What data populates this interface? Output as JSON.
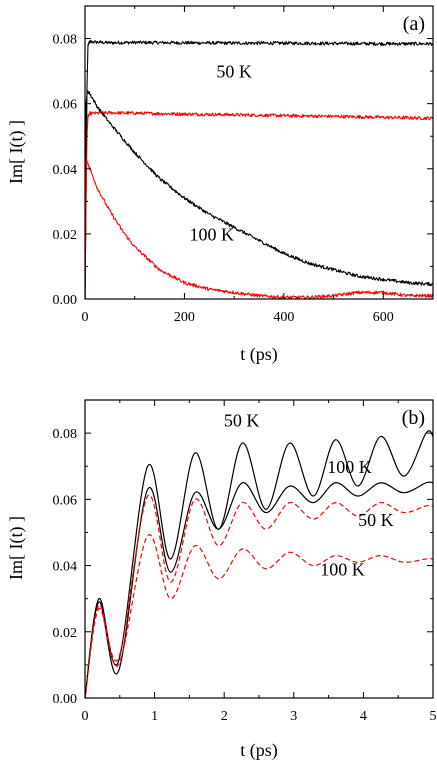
{
  "chart_data": [
    {
      "type": "line",
      "panel_label": "(a)",
      "xlabel": "t (ps)",
      "ylabel": "Im[ I(t) ]",
      "xlim": [
        0,
        700
      ],
      "ylim": [
        0,
        0.09
      ],
      "x_ticks": [
        0,
        200,
        400,
        600
      ],
      "x_tick_labels": [
        "0",
        "200",
        "400",
        "600"
      ],
      "y_ticks": [
        0,
        0.02,
        0.04,
        0.06,
        0.08
      ],
      "y_tick_labels": [
        "0.00",
        "0.02",
        "0.04",
        "0.06",
        "0.08"
      ],
      "series": [
        {
          "color": "#000000",
          "style": "solid",
          "noisy": true,
          "x": [
            0,
            2,
            4,
            6,
            10,
            50,
            100,
            200,
            300,
            400,
            500,
            600,
            700
          ],
          "y": [
            0.0,
            0.03,
            0.065,
            0.078,
            0.079,
            0.0787,
            0.0788,
            0.0787,
            0.0786,
            0.0786,
            0.0785,
            0.0784,
            0.0784
          ]
        },
        {
          "color": "#ff0000",
          "style": "solid",
          "noisy": true,
          "x": [
            0,
            2,
            4,
            6,
            10,
            50,
            100,
            200,
            300,
            400,
            500,
            600,
            700
          ],
          "y": [
            0.0,
            0.03,
            0.05,
            0.056,
            0.057,
            0.0572,
            0.0571,
            0.0568,
            0.0566,
            0.0563,
            0.0561,
            0.0558,
            0.0555
          ]
        },
        {
          "color": "#000000",
          "style": "solid",
          "noisy": true,
          "x": [
            0,
            2,
            5,
            10,
            25,
            50,
            100,
            150,
            200,
            250,
            300,
            350,
            400,
            450,
            500,
            550,
            600,
            650,
            700
          ],
          "y": [
            0.0,
            0.06,
            0.064,
            0.063,
            0.059,
            0.054,
            0.045,
            0.037,
            0.031,
            0.026,
            0.022,
            0.018,
            0.014,
            0.011,
            0.009,
            0.007,
            0.006,
            0.005,
            0.0045
          ]
        },
        {
          "color": "#ff0000",
          "style": "solid",
          "noisy": true,
          "x": [
            0,
            2,
            5,
            10,
            25,
            50,
            75,
            100,
            150,
            200,
            250,
            300,
            350,
            400,
            450,
            500,
            550,
            600,
            650,
            700
          ],
          "y": [
            0.0,
            0.043,
            0.042,
            0.04,
            0.034,
            0.027,
            0.021,
            0.016,
            0.009,
            0.005,
            0.003,
            0.002,
            0.001,
            0.0005,
            0.0005,
            0.001,
            0.002,
            0.002,
            0.001,
            0.001
          ]
        }
      ],
      "annotations": [
        {
          "text": "50 K",
          "x": 300,
          "y": 0.068
        },
        {
          "text": "100 K",
          "x": 255,
          "y": 0.018
        }
      ]
    },
    {
      "type": "line",
      "panel_label": "(b)",
      "xlabel": "t (ps)",
      "ylabel": "Im[ I(t) ]",
      "xlim": [
        0,
        5
      ],
      "ylim": [
        0,
        0.09
      ],
      "x_ticks": [
        0,
        1,
        2,
        3,
        4,
        5
      ],
      "x_tick_labels": [
        "0",
        "1",
        "2",
        "3",
        "4",
        "5"
      ],
      "y_ticks": [
        0,
        0.02,
        0.04,
        0.06,
        0.08
      ],
      "y_tick_labels": [
        "0.00",
        "0.02",
        "0.04",
        "0.06",
        "0.08"
      ],
      "series": [
        {
          "color": "#000000",
          "style": "solid",
          "x": [
            0,
            0.2,
            0.48,
            0.9,
            1.23,
            1.58,
            1.92,
            2.26,
            2.6,
            2.94,
            3.28,
            3.6,
            3.92,
            4.25,
            4.58,
            4.9,
            5.0
          ],
          "y": [
            0.0,
            0.03,
            0.011,
            0.07,
            0.042,
            0.074,
            0.051,
            0.077,
            0.057,
            0.077,
            0.061,
            0.078,
            0.064,
            0.079,
            0.067,
            0.08,
            0.079
          ]
        },
        {
          "color": "#000000",
          "style": "solid",
          "x": [
            0,
            0.2,
            0.48,
            0.9,
            1.23,
            1.58,
            1.92,
            2.26,
            2.6,
            2.94,
            3.28,
            3.6,
            3.92,
            4.25,
            4.58,
            4.9,
            5.0
          ],
          "y": [
            0.0,
            0.029,
            0.008,
            0.063,
            0.038,
            0.062,
            0.051,
            0.065,
            0.056,
            0.064,
            0.059,
            0.065,
            0.061,
            0.065,
            0.062,
            0.065,
            0.065
          ]
        },
        {
          "color": "#ff0000",
          "style": "dashed",
          "x": [
            0,
            0.2,
            0.48,
            0.9,
            1.23,
            1.58,
            1.92,
            2.26,
            2.6,
            2.94,
            3.28,
            3.6,
            3.92,
            4.25,
            4.58,
            4.9,
            5.0
          ],
          "y": [
            0.0,
            0.028,
            0.012,
            0.061,
            0.035,
            0.06,
            0.046,
            0.059,
            0.051,
            0.059,
            0.054,
            0.059,
            0.055,
            0.059,
            0.056,
            0.058,
            0.058
          ]
        },
        {
          "color": "#ff0000",
          "style": "dashed",
          "x": [
            0,
            0.2,
            0.48,
            0.9,
            1.23,
            1.58,
            1.92,
            2.26,
            2.6,
            2.94,
            3.28,
            3.6,
            3.92,
            4.25,
            4.58,
            4.9,
            5.0
          ],
          "y": [
            0.0,
            0.027,
            0.01,
            0.049,
            0.03,
            0.046,
            0.036,
            0.045,
            0.039,
            0.044,
            0.04,
            0.043,
            0.041,
            0.043,
            0.041,
            0.042,
            0.042
          ]
        }
      ],
      "annotations": [
        {
          "text": "50 K",
          "x": 2.25,
          "y": 0.082
        },
        {
          "text": "100 K",
          "x": 3.8,
          "y": 0.068
        },
        {
          "text": "50 K",
          "x": 4.18,
          "y": 0.052
        },
        {
          "text": "100 K",
          "x": 3.7,
          "y": 0.037
        }
      ]
    }
  ]
}
